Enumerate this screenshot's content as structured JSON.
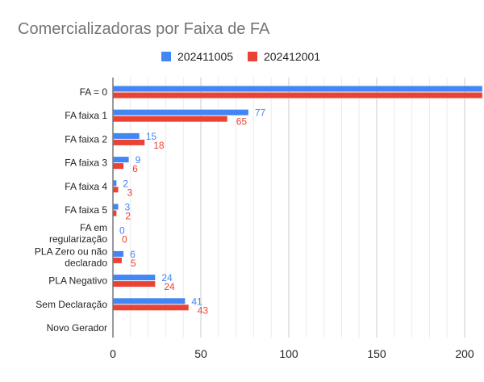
{
  "chart_data": {
    "type": "bar",
    "orientation": "horizontal",
    "title": "Comercializadoras por Faixa de FA",
    "categories": [
      "FA = 0",
      "FA faixa 1",
      "FA faixa 2",
      "FA faixa 3",
      "FA faixa 4",
      "FA faixa 5",
      "FA em regularização",
      "PLA Zero ou não declarado",
      "PLA Negativo",
      "Sem Declaração",
      "Novo Gerador"
    ],
    "series": [
      {
        "name": "202411005",
        "color": "#4285F4",
        "values": [
          210,
          77,
          15,
          9,
          2,
          3,
          0,
          6,
          24,
          41,
          null
        ]
      },
      {
        "name": "202412001",
        "color": "#EA4335",
        "values": [
          210,
          65,
          18,
          6,
          3,
          2,
          0,
          5,
          24,
          43,
          null
        ]
      }
    ],
    "data_labels": [
      [
        null,
        "77",
        "15",
        "9",
        "2",
        "3",
        "0",
        "6",
        "24",
        "41",
        null
      ],
      [
        null,
        "65",
        "18",
        "6",
        "3",
        "2",
        "0",
        "5",
        "24",
        "43",
        null
      ]
    ],
    "xlim": [
      0,
      200
    ],
    "x_ticks": [
      "0",
      "50",
      "100",
      "150",
      "200"
    ],
    "xlabel": "",
    "ylabel": "",
    "grid": true,
    "legend_position": "top"
  }
}
